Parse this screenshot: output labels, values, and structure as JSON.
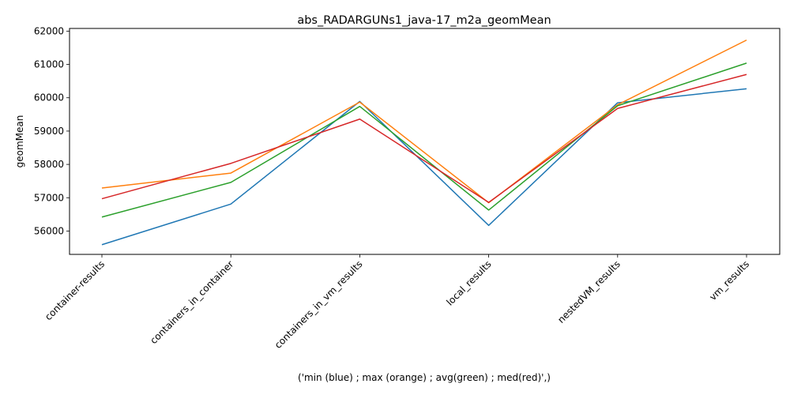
{
  "chart_data": {
    "type": "line",
    "title": "abs_RADARGUNs1_java-17_m2a_geomMean",
    "xlabel": "('min (blue) ; max (orange) ; avg(green) ; med(red)',)",
    "ylabel": "geomMean",
    "categories": [
      "container-results",
      "containers_in_container",
      "containers_in_vm_results",
      "local_results",
      "nestedVM_results",
      "vm_results"
    ],
    "ylim": [
      55300,
      62080
    ],
    "yticks": [
      56000,
      57000,
      58000,
      59000,
      60000,
      61000,
      62000
    ],
    "grid": false,
    "legend": "none",
    "series": [
      {
        "color": "#1f77b4",
        "values": [
          55590,
          56810,
          59890,
          56170,
          59850,
          60270
        ]
      },
      {
        "color": "#ff7f0e",
        "values": [
          57290,
          57740,
          59870,
          56850,
          59790,
          61730
        ]
      },
      {
        "color": "#2ca02c",
        "values": [
          56420,
          57460,
          59740,
          56630,
          59760,
          61040
        ]
      },
      {
        "color": "#d62728",
        "values": [
          56970,
          58030,
          59360,
          56860,
          59680,
          60700
        ]
      }
    ]
  }
}
